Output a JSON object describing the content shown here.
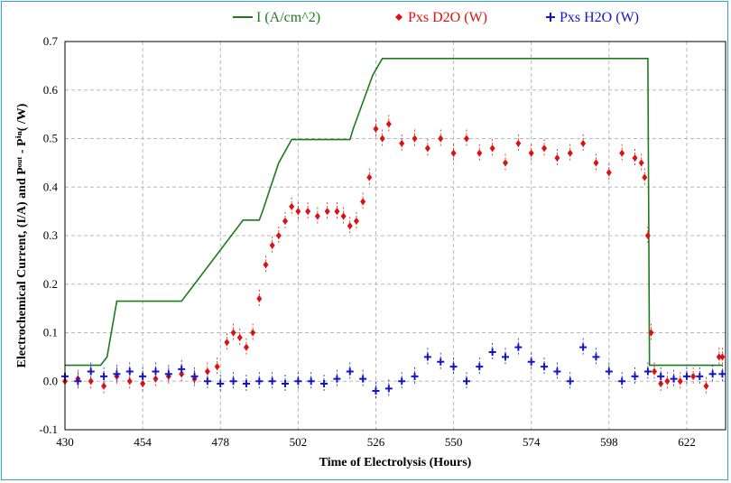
{
  "chart_data": {
    "type": "line",
    "title": "",
    "xlabel": "Time of Electrolysis (Hours)",
    "ylabel": "Electrochemical Current, (I/A) and Pᵒᵘᵗ - Pⁱⁿ( /W)",
    "xlim": [
      430,
      634
    ],
    "ylim": [
      -0.1,
      0.7
    ],
    "xticks": [
      "430",
      "454",
      "478",
      "502",
      "526",
      "550",
      "574",
      "598",
      "622"
    ],
    "yticks": [
      "-0.1",
      "0.0",
      "0.1",
      "0.2",
      "0.3",
      "0.4",
      "0.5",
      "0.6",
      "0.7"
    ],
    "grid": true,
    "legend_position": "top",
    "series": [
      {
        "name": "I (A/cm^2)",
        "style": "line",
        "color": "#1e7a1e",
        "x": [
          430,
          441,
          443,
          446,
          464,
          466,
          470,
          485,
          486,
          490,
          491,
          496,
          500,
          518,
          519,
          525,
          528,
          610,
          610.5,
          633
        ],
        "y": [
          0.033,
          0.033,
          0.05,
          0.165,
          0.165,
          0.165,
          0.2,
          0.332,
          0.332,
          0.332,
          0.35,
          0.45,
          0.498,
          0.498,
          0.52,
          0.63,
          0.665,
          0.665,
          0.033,
          0.033
        ]
      },
      {
        "name": "Pxs D2O (W)",
        "style": "markers",
        "marker": "diamond",
        "color": "#e01010",
        "x": [
          430,
          434,
          438,
          442,
          446,
          450,
          454,
          458,
          462,
          466,
          470,
          474,
          477,
          480,
          482,
          484,
          486,
          488,
          490,
          492,
          494,
          496,
          498,
          500,
          502,
          505,
          508,
          511,
          514,
          516,
          518,
          520,
          522,
          524,
          526,
          528,
          530,
          534,
          538,
          542,
          546,
          550,
          554,
          558,
          562,
          566,
          570,
          574,
          578,
          582,
          586,
          590,
          594,
          598,
          602,
          606,
          608,
          609,
          610,
          611,
          612,
          614,
          616,
          620,
          624,
          628,
          632,
          633
        ],
        "y": [
          0.0,
          0.005,
          0.0,
          -0.01,
          0.01,
          0.0,
          -0.005,
          0.005,
          0.01,
          0.015,
          0.005,
          0.02,
          0.03,
          0.08,
          0.1,
          0.09,
          0.07,
          0.1,
          0.17,
          0.24,
          0.28,
          0.3,
          0.33,
          0.36,
          0.35,
          0.35,
          0.34,
          0.35,
          0.35,
          0.34,
          0.32,
          0.33,
          0.37,
          0.42,
          0.52,
          0.5,
          0.53,
          0.49,
          0.5,
          0.48,
          0.5,
          0.47,
          0.5,
          0.47,
          0.48,
          0.45,
          0.49,
          0.47,
          0.48,
          0.46,
          0.47,
          0.49,
          0.45,
          0.43,
          0.47,
          0.46,
          0.45,
          0.42,
          0.3,
          0.1,
          0.02,
          -0.005,
          0.0,
          0.0,
          0.01,
          -0.01,
          0.05,
          0.05
        ]
      },
      {
        "name": "Pxs H2O (W)",
        "style": "markers",
        "marker": "cross",
        "color": "#1515c8",
        "x": [
          430,
          434,
          438,
          442,
          446,
          450,
          454,
          458,
          462,
          466,
          470,
          474,
          478,
          482,
          486,
          490,
          494,
          498,
          502,
          506,
          510,
          514,
          518,
          522,
          526,
          530,
          534,
          538,
          542,
          546,
          550,
          554,
          558,
          562,
          566,
          570,
          574,
          578,
          582,
          586,
          590,
          594,
          598,
          602,
          606,
          610,
          614,
          618,
          622,
          626,
          630,
          633
        ],
        "y": [
          0.01,
          0.0,
          0.02,
          0.01,
          0.015,
          0.02,
          0.01,
          0.02,
          0.015,
          0.025,
          0.01,
          0.0,
          -0.005,
          0.0,
          -0.005,
          0.0,
          0.0,
          -0.005,
          0.0,
          0.0,
          -0.005,
          0.005,
          0.02,
          0.005,
          -0.02,
          -0.015,
          0.0,
          0.01,
          0.05,
          0.04,
          0.03,
          0.0,
          0.03,
          0.06,
          0.05,
          0.07,
          0.04,
          0.03,
          0.02,
          0.0,
          0.07,
          0.05,
          0.02,
          0.0,
          0.01,
          0.02,
          0.01,
          0.005,
          0.01,
          0.01,
          0.015,
          0.015
        ]
      }
    ]
  }
}
